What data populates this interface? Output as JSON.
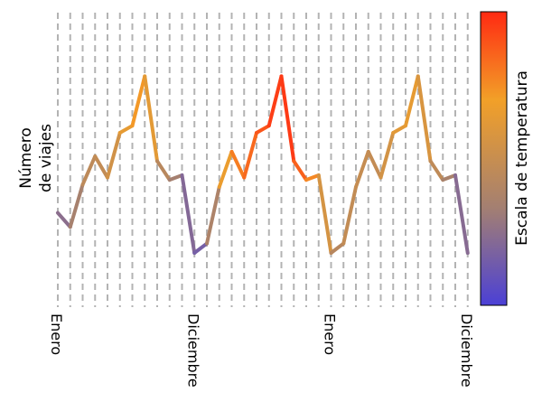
{
  "chart_data": {
    "type": "line",
    "title": "",
    "xlabel": "",
    "ylabel": "Número\nde viajes",
    "colorbar_label": "Escala de temperatura",
    "x_tick_labels": [
      "Enero",
      "Diciembre",
      "Enero",
      "Diciembre"
    ],
    "x_tick_indices": [
      0,
      11,
      22,
      33
    ],
    "y_range": [
      0,
      12.5
    ],
    "grid": "vertical dashed",
    "y_ticks_shown": false,
    "series": [
      {
        "values": [
          4,
          3.4,
          5.2,
          6.4,
          5.5,
          7.4,
          7.7,
          9.8,
          6.2,
          5.4,
          5.6,
          2.3,
          2.7,
          5.1,
          6.6,
          5.5,
          7.4,
          7.7,
          9.8,
          6.2,
          5.4,
          5.6,
          2.3,
          2.7,
          5.1,
          6.6,
          5.5,
          7.4,
          7.7,
          9.8,
          6.2,
          5.4,
          5.6,
          2.3
        ],
        "temperature": [
          0.18,
          0.3,
          0.4,
          0.5,
          0.45,
          0.63,
          0.66,
          0.78,
          0.48,
          0.38,
          0.3,
          0.12,
          0.2,
          0.55,
          0.78,
          0.8,
          0.88,
          0.9,
          1.0,
          0.92,
          0.8,
          0.72,
          0.4,
          0.45,
          0.5,
          0.48,
          0.48,
          0.62,
          0.63,
          0.66,
          0.5,
          0.42,
          0.3,
          0.15
        ]
      }
    ],
    "colormap": {
      "low": "#4b40d6",
      "stops": [
        "#4b40d6",
        "#a37f72",
        "#f2a028",
        "#ff2a12"
      ],
      "high": "#ff2a12"
    },
    "grid_color": "#b3b3b3"
  }
}
